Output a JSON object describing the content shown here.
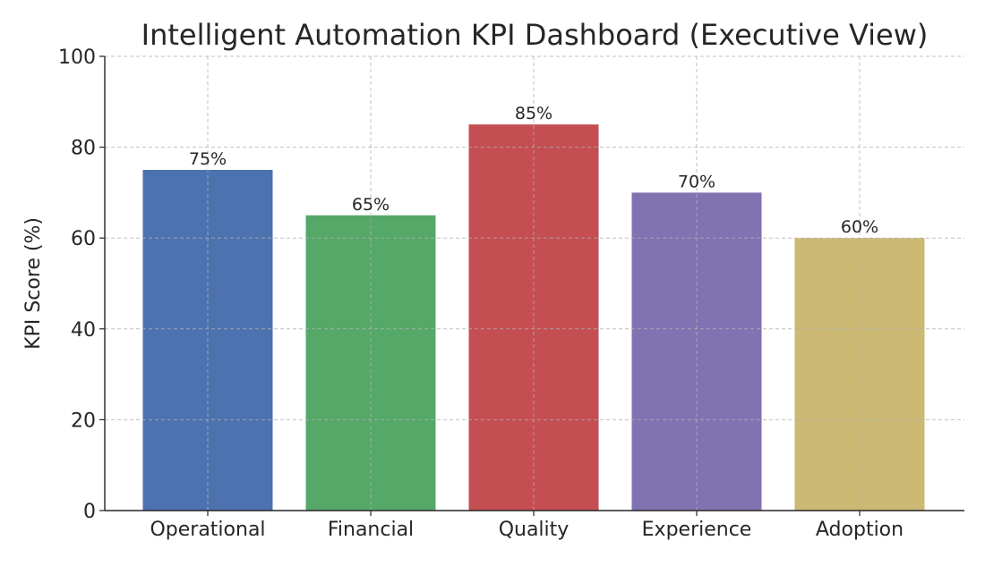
{
  "chart_data": {
    "type": "bar",
    "title": "Intelligent Automation KPI Dashboard (Executive View)",
    "xlabel": "",
    "ylabel": "KPI Score (%)",
    "ylim": [
      0,
      100
    ],
    "yticks": [
      0,
      20,
      40,
      60,
      80,
      100
    ],
    "grid": true,
    "categories": [
      "Operational",
      "Financial",
      "Quality",
      "Experience",
      "Adoption"
    ],
    "values": [
      75,
      65,
      85,
      70,
      60
    ],
    "data_labels": [
      "75%",
      "65%",
      "85%",
      "70%",
      "60%"
    ],
    "colors": [
      "#4C72B0",
      "#55A868",
      "#C44E52",
      "#8172B2",
      "#CCB974"
    ]
  }
}
